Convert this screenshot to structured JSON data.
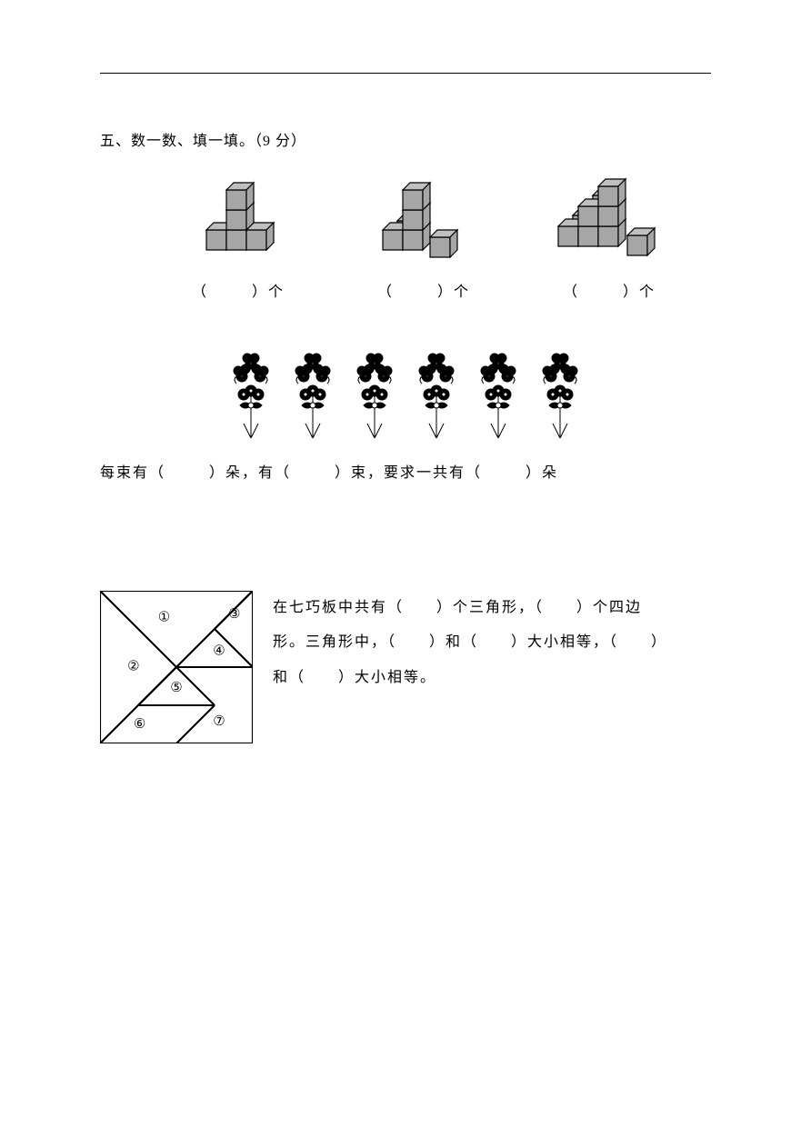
{
  "heading": "五、数一数、填一填。（9 分）",
  "cubes_caption_prefix": "（",
  "cubes_caption_suffix": "）个",
  "cube_colors": {
    "face_top": "#bfbfbf",
    "face_left": "#a6a6a6",
    "face_front": "#a6a6a6",
    "stroke": "#000000"
  },
  "flower_count": 6,
  "flower_stroke": "#000000",
  "flower_fill": "#ffffff",
  "sentence_parts": {
    "p1": "每束有（",
    "p2": "）朵，有（",
    "p3": "）束，要求一共有（",
    "p4": "）朵"
  },
  "tangram": {
    "labels": [
      "①",
      "②",
      "③",
      "④",
      "⑤",
      "⑥",
      "⑦"
    ],
    "stroke": "#000000",
    "size": 168
  },
  "tangram_text": {
    "t1": "在七巧板中共有（",
    "t2": "）个三角形，（",
    "t3": "）个四边",
    "t4": "形。三角形中，（",
    "t5": "）和（",
    "t6": "）大小相等，（",
    "t7": "）",
    "t8": "和（",
    "t9": "）大小相等。"
  }
}
